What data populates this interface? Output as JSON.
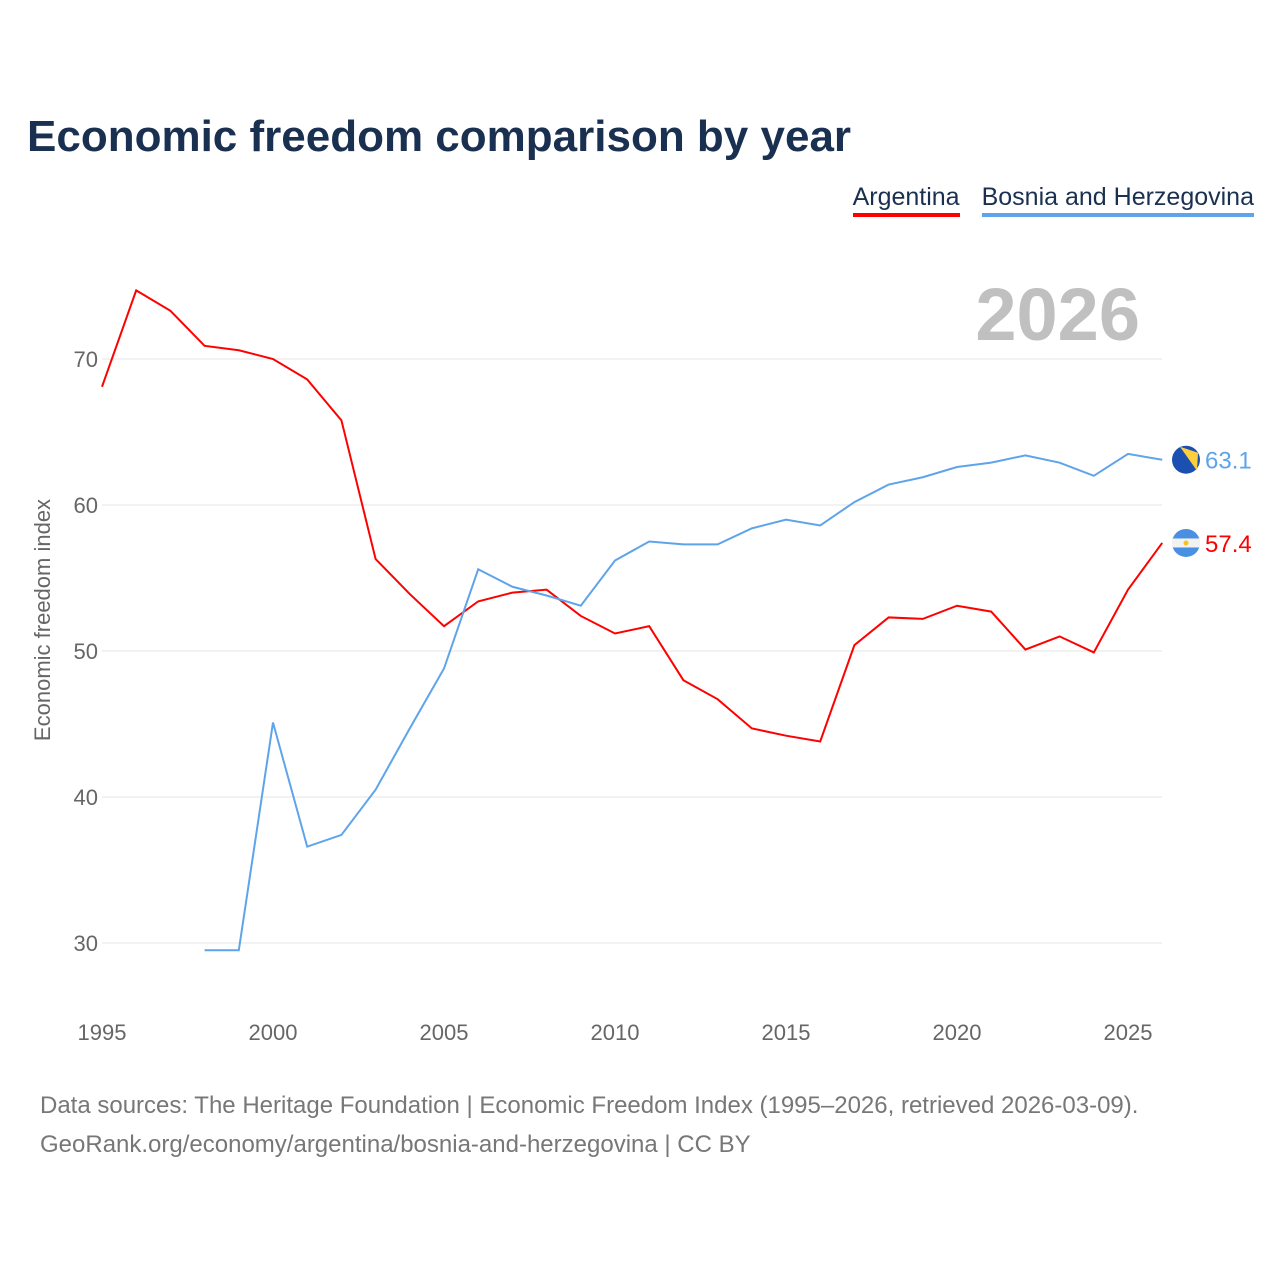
{
  "title": "Economic freedom comparison by year",
  "footer": {
    "line1": "Data sources: The Heritage Foundation | Economic Freedom Index (1995–2026, retrieved 2026-03-09).",
    "line2": "GeoRank.org/economy/argentina/bosnia-and-herzegovina | CC BY"
  },
  "chart_data": {
    "type": "line",
    "title": "Economic freedom comparison by year",
    "ylabel": "Economic freedom index",
    "xlabel": "",
    "year_label": "2026",
    "xlim": [
      1995,
      2026
    ],
    "ylim": [
      25,
      77
    ],
    "xticks": [
      "1995",
      "2000",
      "2005",
      "2010",
      "2015",
      "2020",
      "2025"
    ],
    "yticks": [
      "30",
      "40",
      "50",
      "60",
      "70"
    ],
    "grid": true,
    "legend": "top-right",
    "series": [
      {
        "name": "Argentina",
        "color": "#ff0000",
        "end_label": "57.4",
        "flag": "argentina-flag-icon",
        "x": [
          1995,
          1996,
          1997,
          1998,
          1999,
          2000,
          2001,
          2002,
          2003,
          2004,
          2005,
          2006,
          2007,
          2008,
          2009,
          2010,
          2011,
          2012,
          2013,
          2014,
          2015,
          2016,
          2017,
          2018,
          2019,
          2020,
          2021,
          2022,
          2023,
          2024,
          2025,
          2026
        ],
        "values": [
          68.1,
          74.7,
          73.3,
          70.9,
          70.6,
          70.0,
          68.6,
          65.8,
          56.3,
          53.9,
          51.7,
          53.4,
          54.0,
          54.2,
          52.4,
          51.2,
          51.7,
          48.0,
          46.7,
          44.7,
          44.2,
          43.8,
          50.4,
          52.3,
          52.2,
          53.1,
          52.7,
          50.1,
          51.0,
          49.9,
          54.2,
          57.4
        ]
      },
      {
        "name": "Bosnia and Herzegovina",
        "color": "#5ea4ea",
        "end_label": "63.1",
        "flag": "bosnia-flag-icon",
        "x": [
          1998,
          1999,
          2000,
          2001,
          2002,
          2003,
          2004,
          2005,
          2006,
          2007,
          2008,
          2009,
          2010,
          2011,
          2012,
          2013,
          2014,
          2015,
          2016,
          2017,
          2018,
          2019,
          2020,
          2021,
          2022,
          2023,
          2024,
          2025,
          2026
        ],
        "values": [
          29.5,
          29.5,
          45.1,
          36.6,
          37.4,
          40.5,
          44.7,
          48.8,
          55.6,
          54.4,
          53.8,
          53.1,
          56.2,
          57.5,
          57.3,
          57.3,
          58.4,
          59.0,
          58.6,
          60.2,
          61.4,
          61.9,
          62.6,
          62.9,
          63.4,
          62.9,
          62.0,
          63.5,
          63.1
        ]
      }
    ]
  }
}
